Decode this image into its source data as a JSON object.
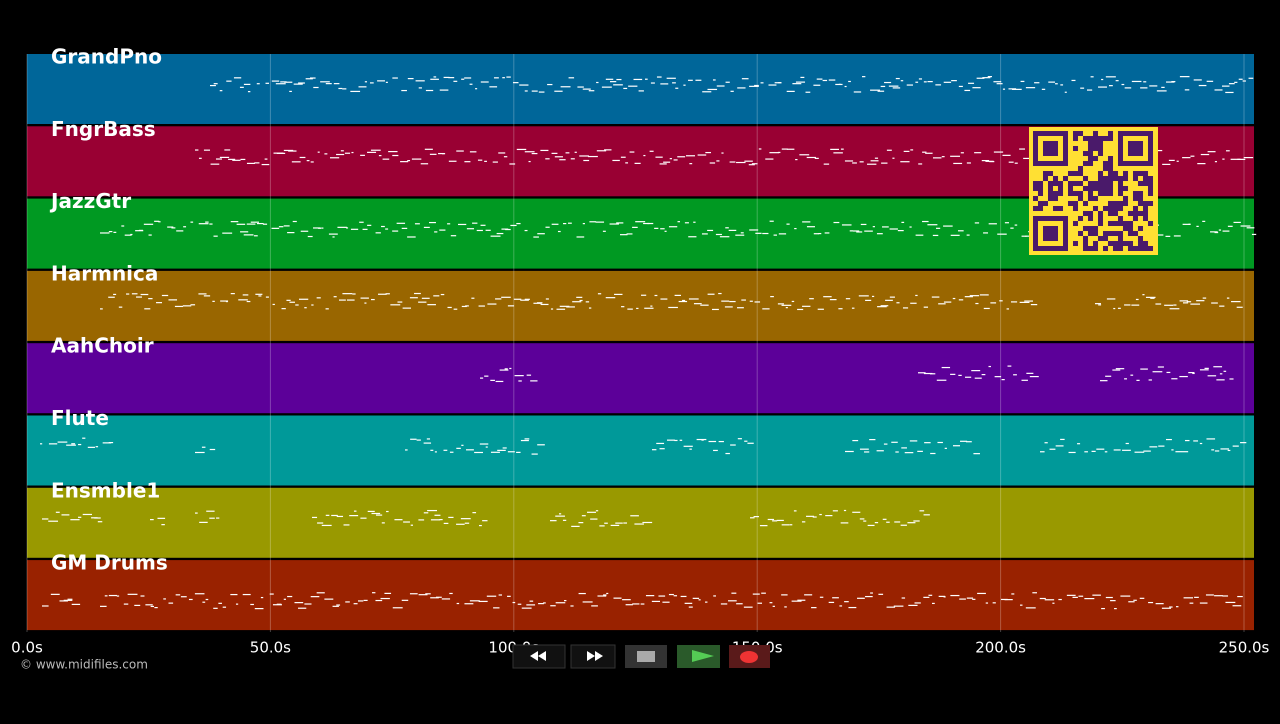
{
  "tracks": [
    {
      "name": "GrandPno",
      "color": "#006699"
    },
    {
      "name": "FngrBass",
      "color": "#990033"
    },
    {
      "name": "JazzGtr",
      "color": "#009922"
    },
    {
      "name": "Harmnica",
      "color": "#996600"
    },
    {
      "name": "AahChoir",
      "color": "#5c0099"
    },
    {
      "name": "Flute",
      "color": "#009999"
    },
    {
      "name": "Ensmble1",
      "color": "#999900"
    },
    {
      "name": "GM Drums",
      "color": "#992200"
    }
  ],
  "time_axis": {
    "xlim": [
      0,
      250
    ],
    "ticks": [
      {
        "value": 0,
        "label": "0.0s"
      },
      {
        "value": 50,
        "label": "50.0s"
      },
      {
        "value": 100,
        "label": "100.0s"
      },
      {
        "value": 150,
        "label": "150.0s"
      },
      {
        "value": 200,
        "label": "200.0s"
      },
      {
        "value": 250,
        "label": "250.0s"
      }
    ]
  },
  "footer": "© www.midifiles.com"
}
